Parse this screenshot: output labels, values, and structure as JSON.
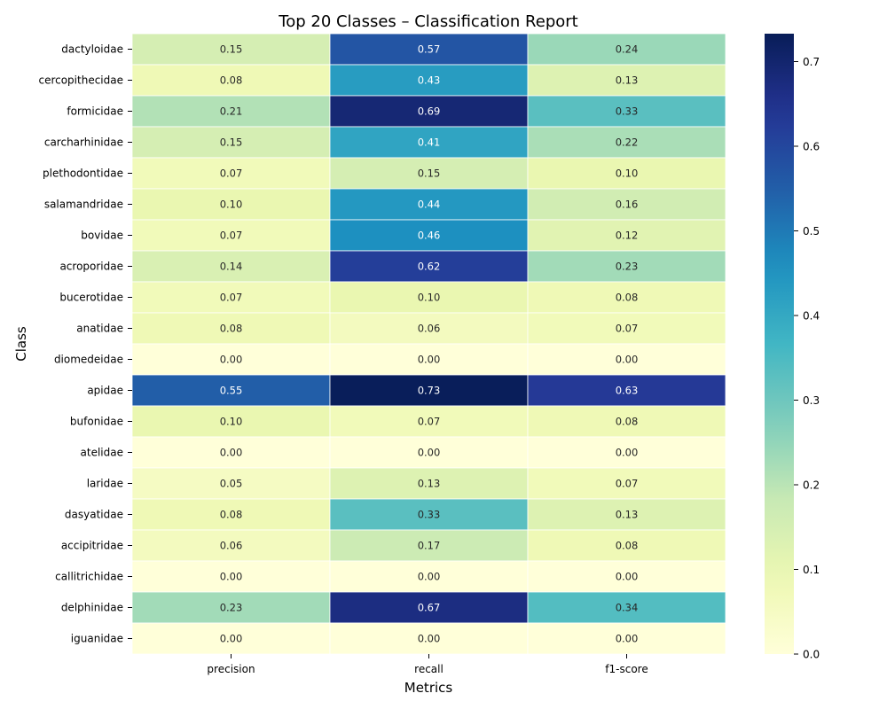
{
  "chart_data": {
    "type": "heatmap",
    "title": "Top 20 Classes – Classification Report",
    "xlabel": "Metrics",
    "ylabel": "Class",
    "columns": [
      "precision",
      "recall",
      "f1-score"
    ],
    "rows": [
      "dactyloidae",
      "cercopithecidae",
      "formicidae",
      "carcharhinidae",
      "plethodontidae",
      "salamandridae",
      "bovidae",
      "acroporidae",
      "bucerotidae",
      "anatidae",
      "diomedeidae",
      "apidae",
      "bufonidae",
      "atelidae",
      "laridae",
      "dasyatidae",
      "accipitridae",
      "callitrichidae",
      "delphinidae",
      "iguanidae"
    ],
    "values": [
      [
        0.15,
        0.57,
        0.24
      ],
      [
        0.08,
        0.43,
        0.13
      ],
      [
        0.21,
        0.69,
        0.33
      ],
      [
        0.15,
        0.41,
        0.22
      ],
      [
        0.07,
        0.15,
        0.1
      ],
      [
        0.1,
        0.44,
        0.16
      ],
      [
        0.07,
        0.46,
        0.12
      ],
      [
        0.14,
        0.62,
        0.23
      ],
      [
        0.07,
        0.1,
        0.08
      ],
      [
        0.08,
        0.06,
        0.07
      ],
      [
        0.0,
        0.0,
        0.0
      ],
      [
        0.55,
        0.73,
        0.63
      ],
      [
        0.1,
        0.07,
        0.08
      ],
      [
        0.0,
        0.0,
        0.0
      ],
      [
        0.05,
        0.13,
        0.07
      ],
      [
        0.08,
        0.33,
        0.13
      ],
      [
        0.06,
        0.17,
        0.08
      ],
      [
        0.0,
        0.0,
        0.0
      ],
      [
        0.23,
        0.67,
        0.34
      ],
      [
        0.0,
        0.0,
        0.0
      ]
    ],
    "value_format": "0.00",
    "colormap": "YlGnBu",
    "vmin": 0.0,
    "vmax": 0.733,
    "colorbar_ticks": [
      0.0,
      0.1,
      0.2,
      0.3,
      0.4,
      0.5,
      0.6,
      0.7
    ],
    "colorbar_tick_labels": [
      "0.0",
      "0.1",
      "0.2",
      "0.3",
      "0.4",
      "0.5",
      "0.6",
      "0.7"
    ],
    "cell_border_color": "#ffffff",
    "grid": false,
    "colorbar_position": "right"
  }
}
